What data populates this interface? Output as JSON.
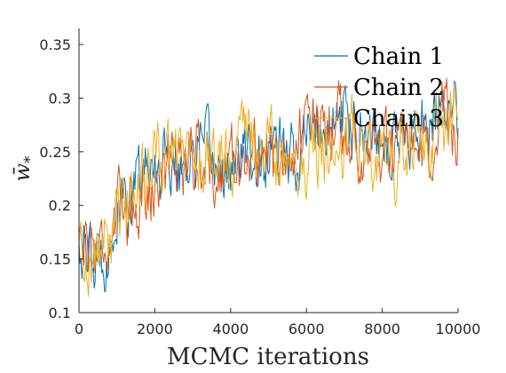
{
  "chart_data": {
    "type": "line",
    "xlabel": "MCMC iterations",
    "ylabel": "w̄",
    "ylabel_subscript": "*",
    "xlim": [
      0,
      10000
    ],
    "ylim": [
      0.1,
      0.365
    ],
    "xticks": [
      0,
      2000,
      4000,
      6000,
      8000,
      10000
    ],
    "xtick_labels": [
      "0",
      "2000",
      "4000",
      "6000",
      "8000",
      "10000"
    ],
    "yticks": [
      0.1,
      0.15,
      0.2,
      0.25,
      0.3,
      0.35
    ],
    "ytick_labels": [
      "0.1",
      "0.15",
      "0.2",
      "0.25",
      "0.3",
      "0.35"
    ],
    "grid": false,
    "legend_position": "top-right",
    "series": [
      {
        "name": "Chain 1",
        "color": "#0072BD",
        "x": [
          0,
          400,
          800,
          1200,
          1600,
          2000,
          2400,
          2800,
          3200,
          3600,
          4000,
          4400,
          4800,
          5200,
          5600,
          6000,
          6400,
          6800,
          7200,
          7600,
          8000,
          8400,
          8800,
          9200,
          9600,
          10000
        ],
        "y": [
          0.17,
          0.14,
          0.17,
          0.2,
          0.22,
          0.24,
          0.25,
          0.24,
          0.25,
          0.24,
          0.23,
          0.25,
          0.24,
          0.25,
          0.24,
          0.26,
          0.27,
          0.28,
          0.28,
          0.27,
          0.27,
          0.26,
          0.27,
          0.27,
          0.28,
          0.28
        ]
      },
      {
        "name": "Chain 2",
        "color": "#D95319",
        "x": [
          0,
          400,
          800,
          1200,
          1600,
          2000,
          2400,
          2800,
          3200,
          3600,
          4000,
          4400,
          4800,
          5200,
          5600,
          6000,
          6400,
          6800,
          7200,
          7600,
          8000,
          8400,
          8800,
          9200,
          9600,
          10000
        ],
        "y": [
          0.18,
          0.16,
          0.17,
          0.2,
          0.21,
          0.22,
          0.24,
          0.25,
          0.25,
          0.23,
          0.24,
          0.24,
          0.25,
          0.24,
          0.26,
          0.27,
          0.27,
          0.28,
          0.26,
          0.26,
          0.25,
          0.25,
          0.24,
          0.25,
          0.28,
          0.27
        ]
      },
      {
        "name": "Chain 3",
        "color": "#EDB120",
        "x": [
          0,
          400,
          800,
          1200,
          1600,
          2000,
          2400,
          2800,
          3200,
          3600,
          4000,
          4400,
          4800,
          5200,
          5600,
          6000,
          6400,
          6800,
          7200,
          7600,
          8000,
          8400,
          8800,
          9200,
          9600,
          10000
        ],
        "y": [
          0.16,
          0.15,
          0.17,
          0.19,
          0.23,
          0.24,
          0.24,
          0.25,
          0.24,
          0.24,
          0.25,
          0.26,
          0.25,
          0.25,
          0.25,
          0.24,
          0.25,
          0.25,
          0.27,
          0.26,
          0.25,
          0.24,
          0.25,
          0.26,
          0.27,
          0.28
        ]
      }
    ]
  }
}
